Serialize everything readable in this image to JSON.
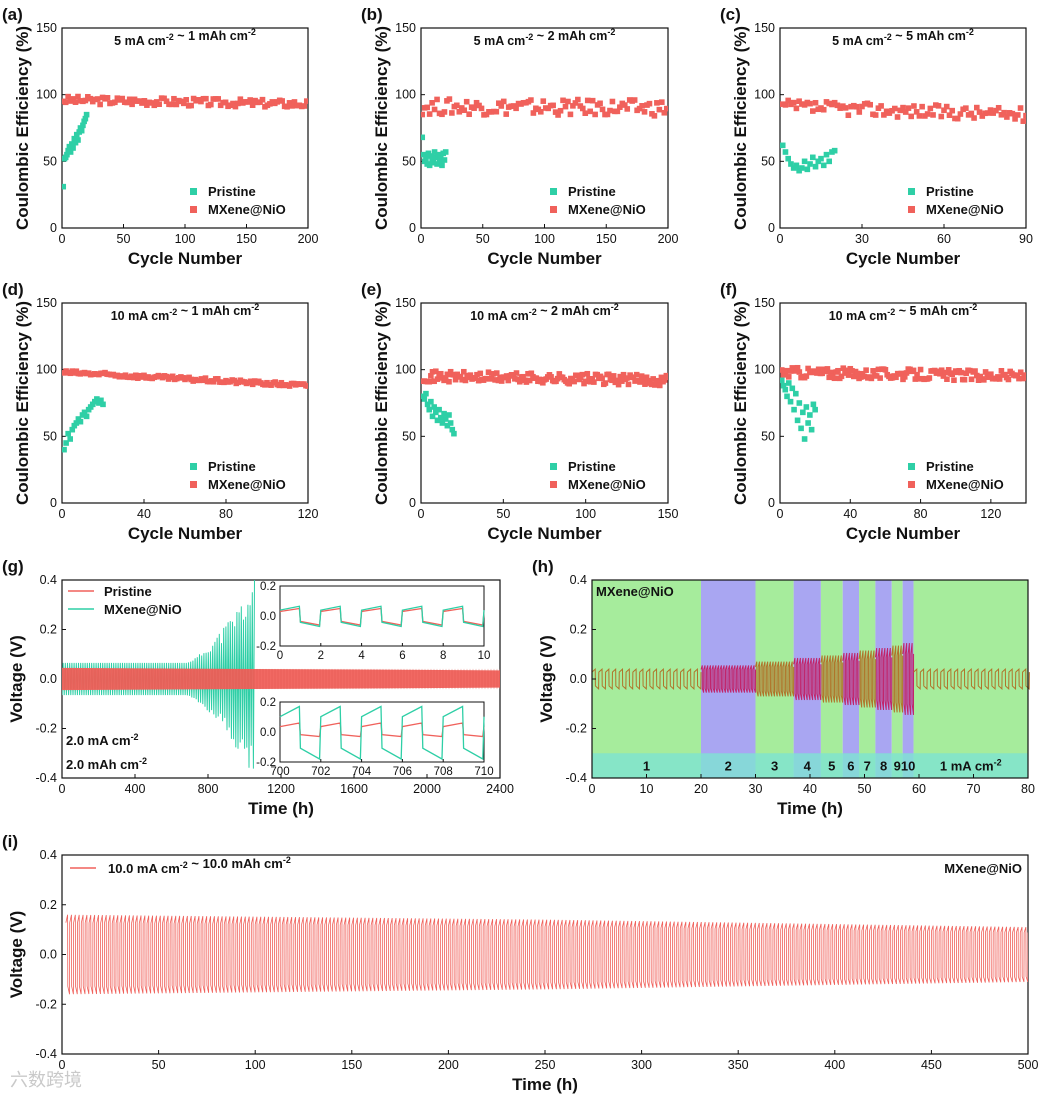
{
  "chart_data": [
    {
      "id": "a",
      "type": "scatter",
      "panel_label": "(a)",
      "annotation": "5 mA cm⁻² ~ 1 mAh cm⁻²",
      "xlabel": "Cycle Number",
      "ylabel": "Coulombic Efficiency (%)",
      "xlim": [
        0,
        200
      ],
      "ylim": [
        0,
        150
      ],
      "xticks": [
        0,
        50,
        100,
        150,
        200
      ],
      "yticks": [
        0,
        50,
        100,
        150
      ],
      "legend_position": "bottom-right",
      "series": [
        {
          "name": "Pristine",
          "color": "#2ecfa6",
          "x": [
            1,
            2,
            3,
            4,
            5,
            6,
            7,
            8,
            9,
            10,
            11,
            12,
            13,
            14,
            15,
            16,
            17,
            18,
            19,
            20
          ],
          "y": [
            31,
            52,
            53,
            55,
            58,
            61,
            57,
            63,
            60,
            67,
            64,
            70,
            66,
            72,
            75,
            73,
            77,
            80,
            82,
            85
          ]
        },
        {
          "name": "MXene@NiO",
          "color": "#f0615b",
          "x_start": 1,
          "x_end": 200,
          "y_base_start": 96,
          "y_base_end": 93,
          "y_jitter": 3
        }
      ]
    },
    {
      "id": "b",
      "type": "scatter",
      "panel_label": "(b)",
      "annotation": "5 mA cm⁻² ~ 2 mAh cm⁻²",
      "xlabel": "Cycle Number",
      "ylabel": "Coulombic Efficiency (%)",
      "xlim": [
        0,
        200
      ],
      "ylim": [
        0,
        150
      ],
      "xticks": [
        0,
        50,
        100,
        150,
        200
      ],
      "yticks": [
        0,
        50,
        100,
        150
      ],
      "legend_position": "bottom-right",
      "series": [
        {
          "name": "Pristine",
          "color": "#2ecfa6",
          "x": [
            1,
            2,
            3,
            4,
            5,
            6,
            7,
            8,
            9,
            10,
            11,
            12,
            13,
            14,
            15,
            16,
            17,
            18,
            19,
            20
          ],
          "y": [
            68,
            55,
            50,
            52,
            48,
            56,
            47,
            54,
            51,
            49,
            57,
            53,
            48,
            55,
            50,
            52,
            47,
            56,
            51,
            57
          ]
        },
        {
          "name": "MXene@NiO",
          "color": "#f0615b",
          "x_start": 1,
          "x_end": 200,
          "y_base_start": 91,
          "y_base_end": 90,
          "y_jitter": 6
        }
      ]
    },
    {
      "id": "c",
      "type": "scatter",
      "panel_label": "(c)",
      "annotation": "5 mA cm⁻² ~ 5 mAh cm⁻²",
      "xlabel": "Cycle Number",
      "ylabel": "Coulombic Efficiency (%)",
      "xlim": [
        0,
        90
      ],
      "ylim": [
        0,
        150
      ],
      "xticks": [
        0,
        30,
        60,
        90
      ],
      "yticks": [
        0,
        50,
        100,
        150
      ],
      "legend_position": "bottom-right",
      "series": [
        {
          "name": "Pristine",
          "color": "#2ecfa6",
          "x": [
            1,
            2,
            3,
            4,
            5,
            6,
            7,
            8,
            9,
            10,
            11,
            12,
            13,
            14,
            15,
            16,
            17,
            18,
            19,
            20
          ],
          "y": [
            62,
            57,
            52,
            48,
            45,
            47,
            43,
            45,
            50,
            44,
            48,
            53,
            46,
            50,
            52,
            47,
            55,
            50,
            57,
            58
          ]
        },
        {
          "name": "MXene@NiO",
          "color": "#f0615b",
          "x_start": 1,
          "x_end": 90,
          "y_base_start": 91,
          "y_base_end": 85,
          "y_jitter": 5
        }
      ]
    },
    {
      "id": "d",
      "type": "scatter",
      "panel_label": "(d)",
      "annotation": "10 mA cm⁻² ~ 1 mAh cm⁻²",
      "xlabel": "Cycle Number",
      "ylabel": "Coulombic Efficiency (%)",
      "xlim": [
        0,
        120
      ],
      "ylim": [
        0,
        150
      ],
      "xticks": [
        0,
        40,
        80,
        120
      ],
      "yticks": [
        0,
        50,
        100,
        150
      ],
      "legend_position": "bottom-right",
      "series": [
        {
          "name": "Pristine",
          "color": "#2ecfa6",
          "x": [
            1,
            2,
            3,
            4,
            5,
            6,
            7,
            8,
            9,
            10,
            11,
            12,
            13,
            14,
            15,
            16,
            17,
            18,
            19,
            20
          ],
          "y": [
            40,
            45,
            52,
            48,
            55,
            58,
            60,
            63,
            61,
            66,
            68,
            65,
            70,
            72,
            74,
            76,
            78,
            75,
            77,
            74
          ]
        },
        {
          "name": "MXene@NiO",
          "color": "#f0615b",
          "x_start": 1,
          "x_end": 120,
          "y_base_start": 98,
          "y_base_end": 88,
          "y_jitter": 1.5
        }
      ]
    },
    {
      "id": "e",
      "type": "scatter",
      "panel_label": "(e)",
      "annotation": "10 mA cm⁻² ~ 2 mAh cm⁻²",
      "xlabel": "Cycle Number",
      "ylabel": "Coulombic Efficiency (%)",
      "xlim": [
        0,
        150
      ],
      "ylim": [
        0,
        150
      ],
      "xticks": [
        0,
        50,
        100,
        150
      ],
      "yticks": [
        0,
        50,
        100,
        150
      ],
      "legend_position": "bottom-right",
      "series": [
        {
          "name": "Pristine",
          "color": "#2ecfa6",
          "x": [
            1,
            2,
            3,
            4,
            5,
            6,
            7,
            8,
            9,
            10,
            11,
            12,
            13,
            14,
            15,
            16,
            17,
            18,
            19,
            20
          ],
          "y": [
            80,
            78,
            82,
            74,
            70,
            76,
            65,
            72,
            68,
            62,
            70,
            64,
            60,
            67,
            63,
            58,
            66,
            60,
            55,
            52
          ]
        },
        {
          "name": "MXene@NiO",
          "color": "#f0615b",
          "x_start": 1,
          "x_end": 150,
          "y_base_start": 95,
          "y_base_end": 92,
          "y_jitter": 4
        }
      ]
    },
    {
      "id": "f",
      "type": "scatter",
      "panel_label": "(f)",
      "annotation": "10 mA cm⁻² ~ 5 mAh cm⁻²",
      "xlabel": "Cycle Number",
      "ylabel": "Coulombic Efficiency (%)",
      "xlim": [
        0,
        140
      ],
      "ylim": [
        0,
        150
      ],
      "xticks": [
        0,
        40,
        80,
        120
      ],
      "yticks": [
        0,
        50,
        100,
        150
      ],
      "legend_position": "bottom-right",
      "series": [
        {
          "name": "Pristine",
          "color": "#2ecfa6",
          "x": [
            1,
            2,
            3,
            4,
            5,
            6,
            7,
            8,
            9,
            10,
            11,
            12,
            13,
            14,
            15,
            16,
            17,
            18,
            19,
            20
          ],
          "y": [
            92,
            88,
            85,
            80,
            90,
            76,
            86,
            70,
            82,
            62,
            75,
            56,
            68,
            48,
            72,
            60,
            66,
            55,
            74,
            70
          ]
        },
        {
          "name": "MXene@NiO",
          "color": "#f0615b",
          "x_start": 1,
          "x_end": 140,
          "y_base_start": 98,
          "y_base_end": 95,
          "y_jitter": 4
        }
      ]
    },
    {
      "id": "g",
      "type": "line",
      "panel_label": "(g)",
      "xlabel": "Time (h)",
      "ylabel": "Voltage (V)",
      "xlim": [
        0,
        2400
      ],
      "ylim": [
        -0.4,
        0.4
      ],
      "xticks": [
        0,
        400,
        800,
        1200,
        1600,
        2000,
        2400
      ],
      "yticks": [
        -0.4,
        -0.2,
        0.0,
        0.2,
        0.4
      ],
      "legend_position": "top-left",
      "conditions": [
        "2.0 mA cm⁻²",
        "2.0 mAh cm⁻²"
      ],
      "series": [
        {
          "name": "Pristine",
          "color": "#f0615b",
          "x_end": 2400,
          "amplitude_start": 0.045,
          "amplitude_end": 0.035
        },
        {
          "name": "MXene@NiO",
          "color": "#2ecfa6",
          "x_end": 1060,
          "amplitude_start": 0.065,
          "amplitude_growth_start_x": 680,
          "amplitude_max": 0.42
        }
      ],
      "insets": [
        {
          "xlim": [
            0,
            10
          ],
          "ylim": [
            -0.2,
            0.2
          ],
          "xticks": [
            0,
            2,
            4,
            6,
            8,
            10
          ],
          "yticks": [
            -0.2,
            0.0,
            0.2
          ],
          "period": 2
        },
        {
          "xlim": [
            700,
            710
          ],
          "ylim": [
            -0.2,
            0.2
          ],
          "xticks": [
            700,
            702,
            704,
            706,
            708,
            710
          ],
          "yticks": [
            -0.2,
            0.0,
            0.2
          ],
          "period": 2
        }
      ]
    },
    {
      "id": "h",
      "type": "line",
      "panel_label": "(h)",
      "xlabel": "Time (h)",
      "ylabel": "Voltage (V)",
      "annotation": "MXene@NiO",
      "xlim": [
        0,
        80
      ],
      "ylim": [
        -0.4,
        0.4
      ],
      "xticks": [
        0,
        10,
        20,
        30,
        40,
        50,
        60,
        70,
        80
      ],
      "yticks": [
        -0.4,
        -0.2,
        0.0,
        0.2,
        0.4
      ],
      "bands": [
        {
          "label": "1",
          "start": 0,
          "end": 20,
          "color": "#a6ec9c",
          "amplitude": 0.04
        },
        {
          "label": "2",
          "start": 20,
          "end": 30,
          "color": "#a9a6f2",
          "amplitude": 0.055
        },
        {
          "label": "3",
          "start": 30,
          "end": 37,
          "color": "#a6ec9c",
          "amplitude": 0.07
        },
        {
          "label": "4",
          "start": 37,
          "end": 42,
          "color": "#a9a6f2",
          "amplitude": 0.085
        },
        {
          "label": "5",
          "start": 42,
          "end": 46,
          "color": "#a6ec9c",
          "amplitude": 0.095
        },
        {
          "label": "6",
          "start": 46,
          "end": 49,
          "color": "#a9a6f2",
          "amplitude": 0.105
        },
        {
          "label": "7",
          "start": 49,
          "end": 52,
          "color": "#a6ec9c",
          "amplitude": 0.115
        },
        {
          "label": "8",
          "start": 52,
          "end": 55,
          "color": "#a9a6f2",
          "amplitude": 0.125
        },
        {
          "label": "9",
          "start": 55,
          "end": 57,
          "color": "#a6ec9c",
          "amplitude": 0.135
        },
        {
          "label": "10",
          "start": 57,
          "end": 59,
          "color": "#a9a6f2",
          "amplitude": 0.145
        },
        {
          "label": "1 mA cm⁻²",
          "start": 59,
          "end": 80,
          "color": "#a6ec9c",
          "amplitude": 0.04
        }
      ]
    },
    {
      "id": "i",
      "type": "line",
      "panel_label": "(i)",
      "xlabel": "Time (h)",
      "ylabel": "Voltage (V)",
      "annotation": "MXene@NiO",
      "xlim": [
        0,
        500
      ],
      "ylim": [
        -0.4,
        0.4
      ],
      "xticks": [
        0,
        50,
        100,
        150,
        200,
        250,
        300,
        350,
        400,
        450,
        500
      ],
      "yticks": [
        -0.4,
        -0.2,
        0.0,
        0.2,
        0.4
      ],
      "legend_position": "top-left",
      "series": [
        {
          "name": "10.0 mA cm⁻² ~ 10.0 mAh cm⁻²",
          "color": "#f0615b",
          "amplitude_start": 0.16,
          "amplitude_mid": 0.14,
          "amplitude_end": 0.11,
          "period": 2
        }
      ]
    }
  ],
  "watermark": "六数跨境"
}
